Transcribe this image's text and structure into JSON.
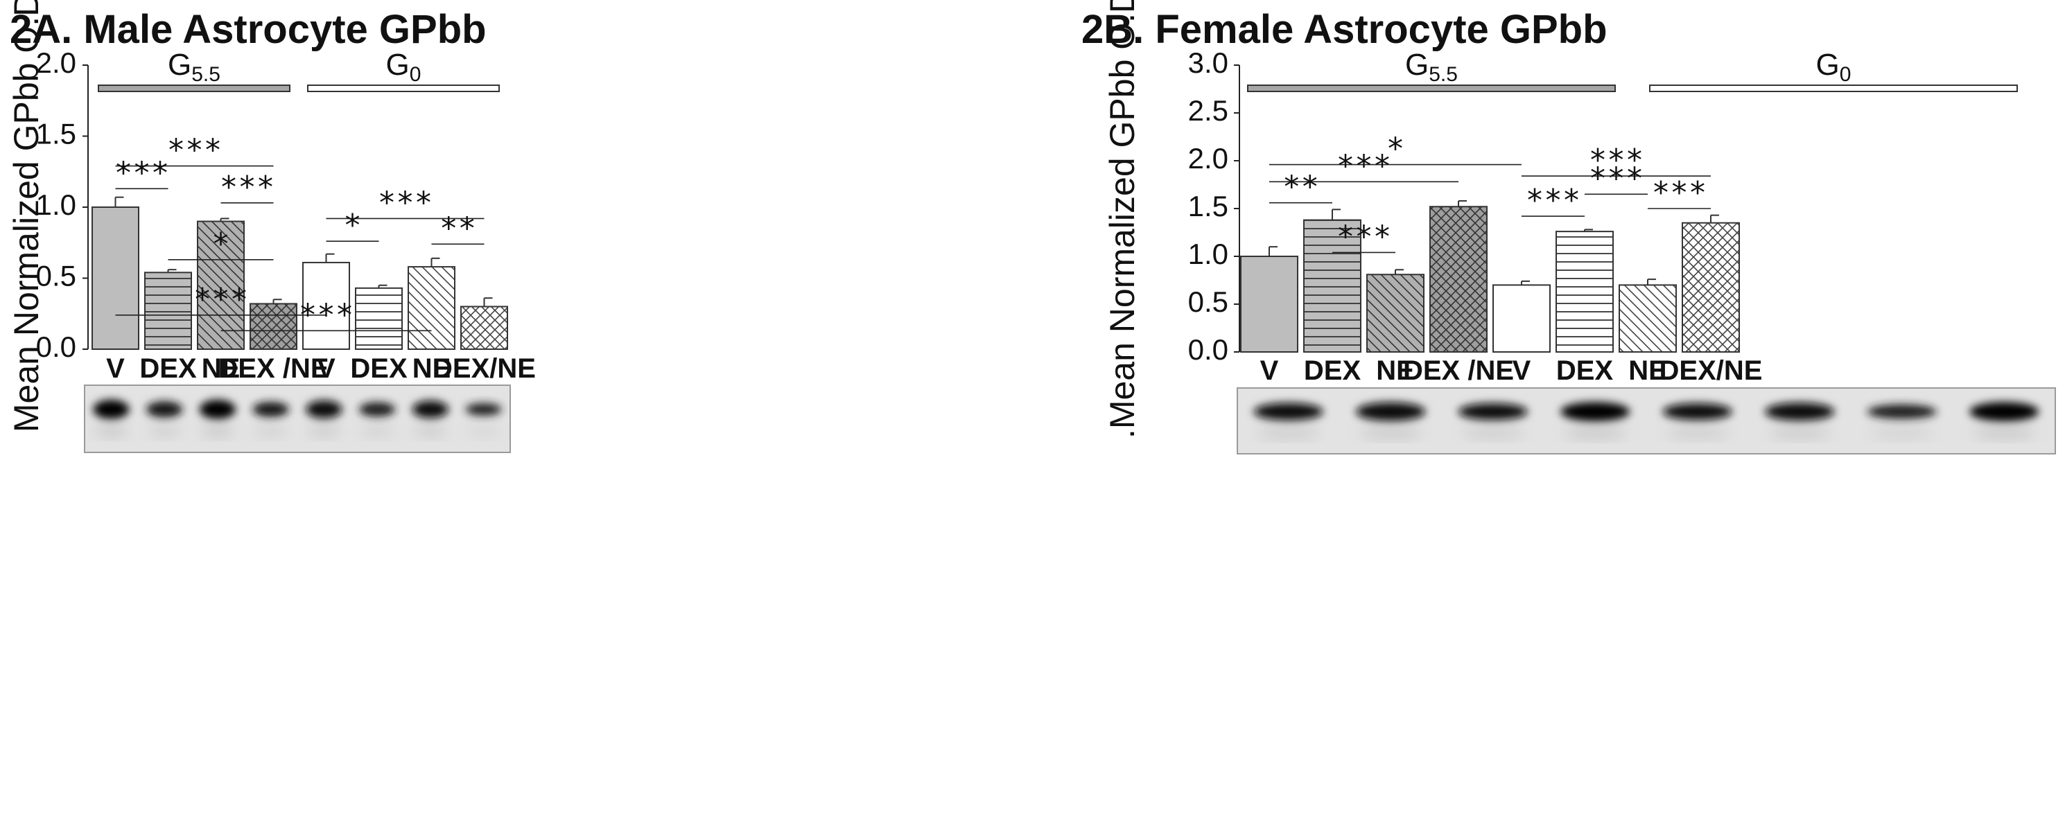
{
  "chart_data": [
    {
      "panel": "2A",
      "type": "bar",
      "title": "2A.  Male Astrocyte GPbb",
      "ylabel": "Mean Normalized GPbb O.D.",
      "ylim": [
        0,
        2.0
      ],
      "yticks": [
        "0.0",
        "0.5",
        "1.0",
        "1.5",
        "2.0"
      ],
      "groups": [
        {
          "label": "G",
          "sub": "5.5",
          "color": "#a6a6a6"
        },
        {
          "label": "G",
          "sub": "0",
          "color": "#ffffff"
        }
      ],
      "categories": [
        "V",
        "DEX",
        "NE",
        "DEX /NE",
        "V",
        "DEX",
        "NE",
        "DEX/NE"
      ],
      "values": [
        1.0,
        0.54,
        0.9,
        0.32,
        0.61,
        0.43,
        0.58,
        0.3
      ],
      "errors": [
        0.07,
        0.02,
        0.02,
        0.03,
        0.06,
        0.02,
        0.06,
        0.06
      ],
      "fills": [
        "solid-gray",
        "hlines-gray",
        "diag-gray",
        "cross-gray",
        "solid-white",
        "hlines-white",
        "diag-white",
        "cross-white"
      ],
      "significance": [
        {
          "from": 0,
          "to": 3,
          "y": 1.29,
          "label": "***"
        },
        {
          "from": 0,
          "to": 1,
          "y": 1.13,
          "label": "***"
        },
        {
          "from": 2,
          "to": 3,
          "y": 1.03,
          "label": "***"
        },
        {
          "from": 4,
          "to": 7,
          "y": 0.92,
          "label": "***"
        },
        {
          "from": 4,
          "to": 5,
          "y": 0.76,
          "label": "*"
        },
        {
          "from": 6,
          "to": 7,
          "y": 0.74,
          "label": "**"
        },
        {
          "from": 1,
          "to": 3,
          "y": 0.63,
          "label": "*"
        },
        {
          "from": 0,
          "to": 4,
          "y": 0.24,
          "label": "***"
        },
        {
          "from": 2,
          "to": 6,
          "y": 0.13,
          "label": "***"
        }
      ],
      "blot": [
        1.0,
        0.75,
        1.0,
        0.65,
        0.9,
        0.6,
        0.85,
        0.45
      ]
    },
    {
      "panel": "2B",
      "type": "bar",
      "title": "2B.  Female Astrocyte GPbb",
      "ylabel": ".Mean Normalized GPbb O.D.",
      "ylim": [
        0,
        3.0
      ],
      "yticks": [
        "0.0",
        "0.5",
        "1.0",
        "1.5",
        "2.0",
        "2.5",
        "3.0"
      ],
      "groups": [
        {
          "label": "G",
          "sub": "5.5",
          "color": "#a6a6a6"
        },
        {
          "label": "G",
          "sub": "0",
          "color": "#ffffff"
        }
      ],
      "categories": [
        "V",
        "DEX",
        "NE",
        "DEX /NE",
        "V",
        "DEX",
        "NE",
        "DEX/NE"
      ],
      "values": [
        1.0,
        1.38,
        0.81,
        1.52,
        0.7,
        1.26,
        0.7,
        1.35
      ],
      "errors": [
        0.1,
        0.11,
        0.05,
        0.06,
        0.04,
        0.02,
        0.06,
        0.08
      ],
      "fills": [
        "solid-gray",
        "hlines-gray",
        "diag-gray",
        "cross-gray",
        "solid-white",
        "hlines-white",
        "diag-white",
        "cross-white"
      ],
      "significance": [
        {
          "from": 0,
          "to": 4,
          "y": 1.96,
          "label": "*"
        },
        {
          "from": 4,
          "to": 7,
          "y": 1.84,
          "label": "***"
        },
        {
          "from": 0,
          "to": 3,
          "y": 1.78,
          "label": "***"
        },
        {
          "from": 5,
          "to": 6,
          "y": 1.65,
          "label": "***"
        },
        {
          "from": 0,
          "to": 1,
          "y": 1.56,
          "label": "**"
        },
        {
          "from": 6,
          "to": 7,
          "y": 1.5,
          "label": "***"
        },
        {
          "from": 4,
          "to": 5,
          "y": 1.42,
          "label": "***"
        },
        {
          "from": 1,
          "to": 2,
          "y": 1.04,
          "label": "***"
        }
      ],
      "blot": [
        0.85,
        0.95,
        0.8,
        1.0,
        0.8,
        0.9,
        0.6,
        1.0
      ]
    }
  ]
}
